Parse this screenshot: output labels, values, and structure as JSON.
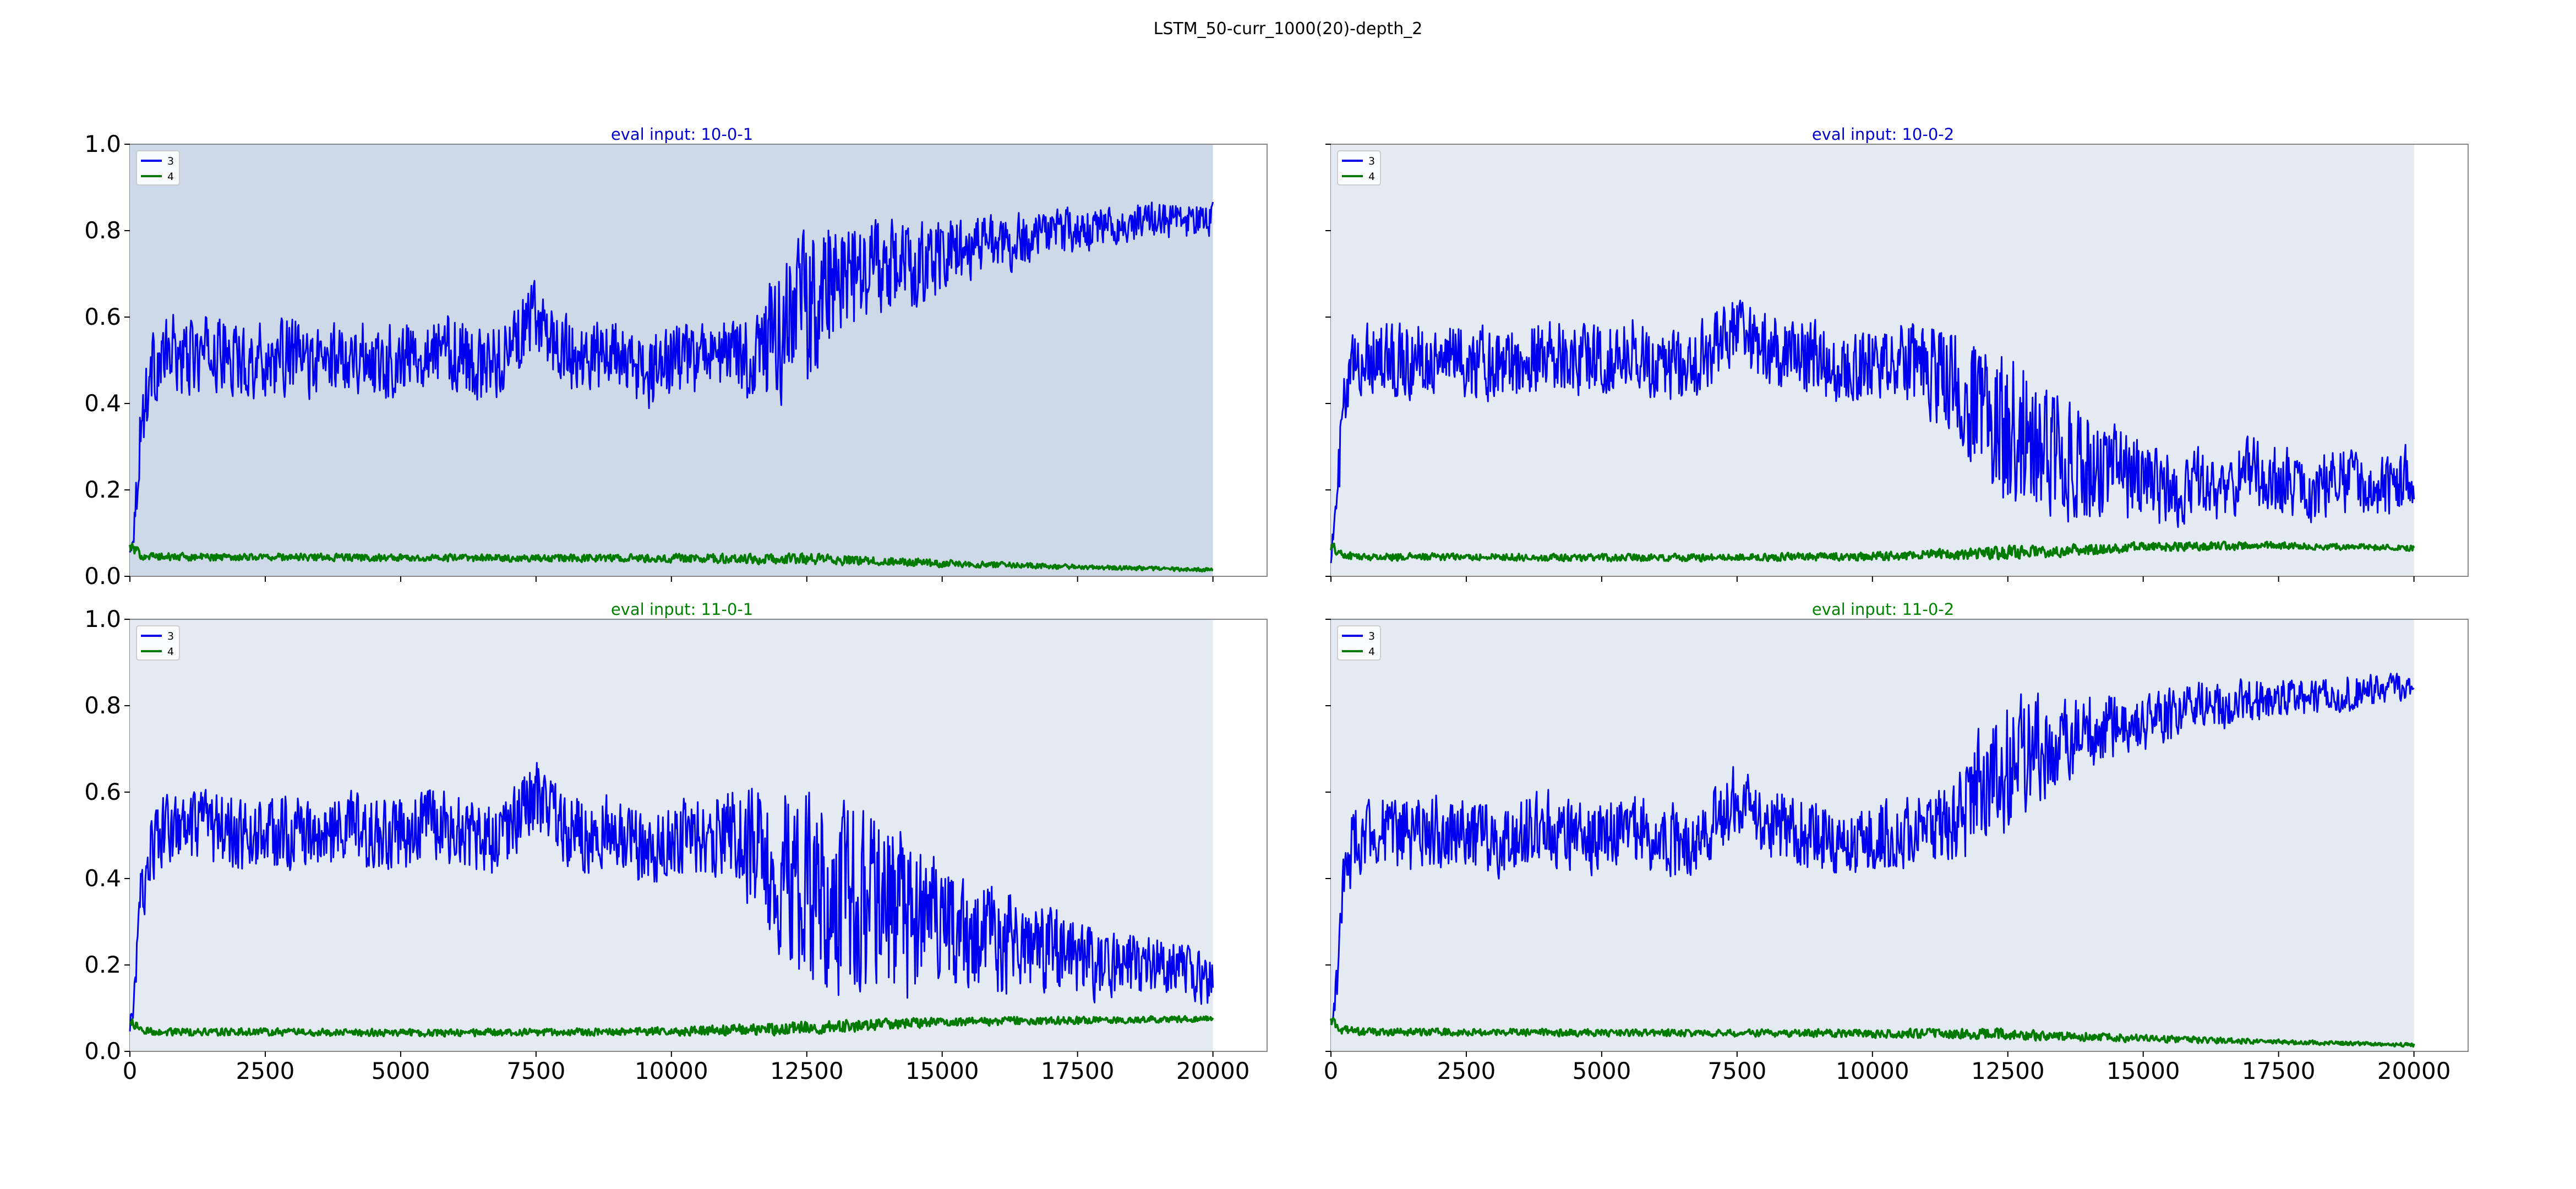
{
  "figure": {
    "suptitle": "LSTM_50-curr_1000(20)-depth_2"
  },
  "colors": {
    "series_3": "#0000ee",
    "series_4": "#007a00",
    "axes_bg_dark": "#cdd9e6",
    "axes_bg_light": "#e4eaf2",
    "title_blue": "#0000cc",
    "title_green": "#008000"
  },
  "chart_data": [
    {
      "type": "line",
      "title": "eval input: 10-0-1",
      "title_color": "blue",
      "background": "dark",
      "xlim": [
        0,
        21000
      ],
      "ylim": [
        0,
        1.0
      ],
      "xticks": [
        "0",
        "2500",
        "5000",
        "7500",
        "10000",
        "12500",
        "15000",
        "17500",
        "20000"
      ],
      "yticks": [
        "0.0",
        "0.2",
        "0.4",
        "0.6",
        "0.8",
        "1.0"
      ],
      "show_xtick_labels": false,
      "show_ytick_labels": true,
      "legend": {
        "placement": "upper-left",
        "entries": [
          "3",
          "4"
        ]
      },
      "series": [
        {
          "name": "3",
          "color": "blue",
          "x": [
            0,
            100,
            200,
            400,
            600,
            800,
            1000,
            1500,
            2000,
            2500,
            3000,
            3500,
            4000,
            4500,
            5000,
            5500,
            6000,
            6500,
            7000,
            7500,
            8000,
            8500,
            9000,
            9500,
            10000,
            10500,
            11000,
            11500,
            12000,
            12500,
            13000,
            13500,
            14000,
            14500,
            15000,
            15500,
            16000,
            16500,
            17000,
            17500,
            18000,
            18500,
            19000,
            19500,
            20000
          ],
          "values": [
            0.05,
            0.15,
            0.35,
            0.48,
            0.5,
            0.52,
            0.5,
            0.52,
            0.5,
            0.5,
            0.51,
            0.49,
            0.52,
            0.5,
            0.5,
            0.53,
            0.52,
            0.48,
            0.52,
            0.6,
            0.52,
            0.5,
            0.52,
            0.46,
            0.5,
            0.5,
            0.52,
            0.5,
            0.56,
            0.62,
            0.68,
            0.7,
            0.72,
            0.72,
            0.74,
            0.76,
            0.77,
            0.78,
            0.8,
            0.8,
            0.81,
            0.82,
            0.83,
            0.82,
            0.83
          ],
          "spread": [
            0.02,
            0.05,
            0.08,
            0.08,
            0.08,
            0.08,
            0.08,
            0.08,
            0.08,
            0.08,
            0.08,
            0.08,
            0.08,
            0.08,
            0.08,
            0.08,
            0.08,
            0.08,
            0.08,
            0.08,
            0.08,
            0.08,
            0.08,
            0.08,
            0.08,
            0.08,
            0.08,
            0.1,
            0.15,
            0.18,
            0.15,
            0.12,
            0.1,
            0.1,
            0.08,
            0.07,
            0.06,
            0.06,
            0.05,
            0.05,
            0.04,
            0.04,
            0.04,
            0.04,
            0.04
          ]
        },
        {
          "name": "4",
          "color": "green",
          "x": [
            0,
            200,
            500,
            2500,
            5000,
            7500,
            10000,
            12500,
            15000,
            17500,
            20000
          ],
          "values": [
            0.07,
            0.05,
            0.045,
            0.045,
            0.043,
            0.042,
            0.042,
            0.04,
            0.03,
            0.022,
            0.015
          ],
          "spread": [
            0.01,
            0.01,
            0.008,
            0.008,
            0.008,
            0.008,
            0.009,
            0.012,
            0.008,
            0.005,
            0.004
          ]
        }
      ]
    },
    {
      "type": "line",
      "title": "eval input: 10-0-2",
      "title_color": "blue",
      "background": "light",
      "xlim": [
        0,
        21000
      ],
      "ylim": [
        0,
        1.0
      ],
      "xticks": [
        "0",
        "2500",
        "5000",
        "7500",
        "10000",
        "12500",
        "15000",
        "17500",
        "20000"
      ],
      "yticks": [
        "0.0",
        "0.2",
        "0.4",
        "0.6",
        "0.8",
        "1.0"
      ],
      "show_xtick_labels": false,
      "show_ytick_labels": false,
      "legend": {
        "placement": "upper-left",
        "entries": [
          "3",
          "4"
        ]
      },
      "series": [
        {
          "name": "3",
          "color": "blue",
          "x": [
            0,
            100,
            200,
            400,
            600,
            800,
            1000,
            1500,
            2000,
            2500,
            3000,
            3500,
            4000,
            4500,
            5000,
            5500,
            6000,
            6500,
            7000,
            7500,
            8000,
            8500,
            9000,
            9500,
            10000,
            10500,
            11000,
            11500,
            12000,
            12500,
            13000,
            13500,
            14000,
            14500,
            15000,
            15500,
            16000,
            16500,
            17000,
            17500,
            18000,
            18500,
            19000,
            19500,
            20000
          ],
          "values": [
            0.05,
            0.15,
            0.35,
            0.48,
            0.5,
            0.52,
            0.5,
            0.5,
            0.51,
            0.5,
            0.49,
            0.5,
            0.52,
            0.5,
            0.5,
            0.52,
            0.5,
            0.48,
            0.52,
            0.58,
            0.52,
            0.52,
            0.5,
            0.46,
            0.5,
            0.5,
            0.48,
            0.46,
            0.4,
            0.34,
            0.3,
            0.28,
            0.26,
            0.24,
            0.22,
            0.2,
            0.22,
            0.2,
            0.24,
            0.22,
            0.2,
            0.22,
            0.22,
            0.2,
            0.24
          ],
          "spread": [
            0.02,
            0.05,
            0.08,
            0.08,
            0.08,
            0.08,
            0.08,
            0.08,
            0.08,
            0.08,
            0.08,
            0.08,
            0.08,
            0.08,
            0.08,
            0.08,
            0.08,
            0.08,
            0.08,
            0.08,
            0.08,
            0.08,
            0.08,
            0.08,
            0.08,
            0.08,
            0.1,
            0.12,
            0.16,
            0.18,
            0.16,
            0.14,
            0.12,
            0.1,
            0.09,
            0.08,
            0.08,
            0.08,
            0.08,
            0.08,
            0.07,
            0.07,
            0.07,
            0.07,
            0.07
          ]
        },
        {
          "name": "4",
          "color": "green",
          "x": [
            0,
            200,
            500,
            2500,
            5000,
            7500,
            10000,
            12500,
            15000,
            17500,
            20000
          ],
          "values": [
            0.07,
            0.05,
            0.045,
            0.045,
            0.043,
            0.044,
            0.046,
            0.055,
            0.068,
            0.072,
            0.065
          ],
          "spread": [
            0.01,
            0.01,
            0.008,
            0.008,
            0.008,
            0.008,
            0.009,
            0.015,
            0.01,
            0.008,
            0.006
          ]
        }
      ]
    },
    {
      "type": "line",
      "title": "eval input: 11-0-1",
      "title_color": "green",
      "background": "light",
      "xlim": [
        0,
        21000
      ],
      "ylim": [
        0,
        1.0
      ],
      "xticks": [
        "0",
        "2500",
        "5000",
        "7500",
        "10000",
        "12500",
        "15000",
        "17500",
        "20000"
      ],
      "yticks": [
        "0.0",
        "0.2",
        "0.4",
        "0.6",
        "0.8",
        "1.0"
      ],
      "show_xtick_labels": true,
      "show_ytick_labels": true,
      "legend": {
        "placement": "upper-left",
        "entries": [
          "3",
          "4"
        ]
      },
      "series": [
        {
          "name": "3",
          "color": "blue",
          "x": [
            0,
            100,
            200,
            400,
            600,
            800,
            1000,
            1500,
            2000,
            2500,
            3000,
            3500,
            4000,
            4500,
            5000,
            5500,
            6000,
            6500,
            7000,
            7500,
            8000,
            8500,
            9000,
            9500,
            10000,
            10500,
            11000,
            11500,
            12000,
            12500,
            13000,
            13500,
            14000,
            14500,
            15000,
            15500,
            16000,
            16500,
            17000,
            17500,
            18000,
            18500,
            19000,
            19500,
            20000
          ],
          "values": [
            0.05,
            0.15,
            0.35,
            0.48,
            0.5,
            0.52,
            0.5,
            0.52,
            0.5,
            0.5,
            0.51,
            0.49,
            0.52,
            0.5,
            0.5,
            0.53,
            0.52,
            0.48,
            0.52,
            0.6,
            0.52,
            0.5,
            0.52,
            0.46,
            0.5,
            0.5,
            0.5,
            0.46,
            0.42,
            0.38,
            0.36,
            0.34,
            0.34,
            0.3,
            0.28,
            0.26,
            0.26,
            0.24,
            0.24,
            0.22,
            0.2,
            0.2,
            0.2,
            0.18,
            0.16
          ],
          "spread": [
            0.02,
            0.05,
            0.08,
            0.08,
            0.08,
            0.08,
            0.08,
            0.08,
            0.08,
            0.08,
            0.08,
            0.08,
            0.08,
            0.08,
            0.08,
            0.08,
            0.08,
            0.08,
            0.08,
            0.08,
            0.08,
            0.08,
            0.08,
            0.08,
            0.08,
            0.08,
            0.1,
            0.14,
            0.2,
            0.22,
            0.22,
            0.2,
            0.2,
            0.18,
            0.15,
            0.12,
            0.12,
            0.1,
            0.1,
            0.08,
            0.08,
            0.07,
            0.06,
            0.06,
            0.05
          ]
        },
        {
          "name": "4",
          "color": "green",
          "x": [
            0,
            200,
            500,
            2500,
            5000,
            7500,
            10000,
            12500,
            15000,
            17500,
            20000
          ],
          "values": [
            0.07,
            0.05,
            0.045,
            0.045,
            0.043,
            0.044,
            0.046,
            0.055,
            0.068,
            0.072,
            0.075
          ],
          "spread": [
            0.01,
            0.01,
            0.008,
            0.008,
            0.008,
            0.008,
            0.009,
            0.015,
            0.01,
            0.008,
            0.006
          ]
        }
      ]
    },
    {
      "type": "line",
      "title": "eval input: 11-0-2",
      "title_color": "green",
      "background": "light",
      "xlim": [
        0,
        21000
      ],
      "ylim": [
        0,
        1.0
      ],
      "xticks": [
        "0",
        "2500",
        "5000",
        "7500",
        "10000",
        "12500",
        "15000",
        "17500",
        "20000"
      ],
      "yticks": [
        "0.0",
        "0.2",
        "0.4",
        "0.6",
        "0.8",
        "1.0"
      ],
      "show_xtick_labels": true,
      "show_ytick_labels": false,
      "legend": {
        "placement": "upper-left",
        "entries": [
          "3",
          "4"
        ]
      },
      "series": [
        {
          "name": "3",
          "color": "blue",
          "x": [
            0,
            100,
            200,
            400,
            600,
            800,
            1000,
            1500,
            2000,
            2500,
            3000,
            3500,
            4000,
            4500,
            5000,
            5500,
            6000,
            6500,
            7000,
            7500,
            8000,
            8500,
            9000,
            9500,
            10000,
            10500,
            11000,
            11500,
            12000,
            12500,
            13000,
            13500,
            14000,
            14500,
            15000,
            15500,
            16000,
            16500,
            17000,
            17500,
            18000,
            18500,
            19000,
            19500,
            20000
          ],
          "values": [
            0.05,
            0.15,
            0.35,
            0.48,
            0.5,
            0.52,
            0.5,
            0.5,
            0.51,
            0.5,
            0.49,
            0.5,
            0.52,
            0.5,
            0.5,
            0.52,
            0.5,
            0.48,
            0.52,
            0.58,
            0.52,
            0.52,
            0.5,
            0.46,
            0.5,
            0.5,
            0.52,
            0.54,
            0.6,
            0.66,
            0.7,
            0.72,
            0.74,
            0.75,
            0.76,
            0.78,
            0.8,
            0.8,
            0.81,
            0.82,
            0.82,
            0.83,
            0.83,
            0.84,
            0.84
          ],
          "spread": [
            0.02,
            0.05,
            0.08,
            0.08,
            0.08,
            0.08,
            0.08,
            0.08,
            0.08,
            0.08,
            0.08,
            0.08,
            0.08,
            0.08,
            0.08,
            0.08,
            0.08,
            0.08,
            0.08,
            0.08,
            0.08,
            0.08,
            0.08,
            0.08,
            0.08,
            0.08,
            0.08,
            0.1,
            0.14,
            0.14,
            0.12,
            0.1,
            0.08,
            0.07,
            0.06,
            0.06,
            0.05,
            0.05,
            0.05,
            0.04,
            0.04,
            0.04,
            0.04,
            0.03,
            0.03
          ]
        },
        {
          "name": "4",
          "color": "green",
          "x": [
            0,
            200,
            500,
            2500,
            5000,
            7500,
            10000,
            12500,
            15000,
            17500,
            20000
          ],
          "values": [
            0.07,
            0.05,
            0.045,
            0.045,
            0.043,
            0.042,
            0.042,
            0.04,
            0.03,
            0.022,
            0.015
          ],
          "spread": [
            0.01,
            0.01,
            0.008,
            0.008,
            0.008,
            0.008,
            0.009,
            0.012,
            0.008,
            0.005,
            0.004
          ]
        }
      ]
    }
  ]
}
